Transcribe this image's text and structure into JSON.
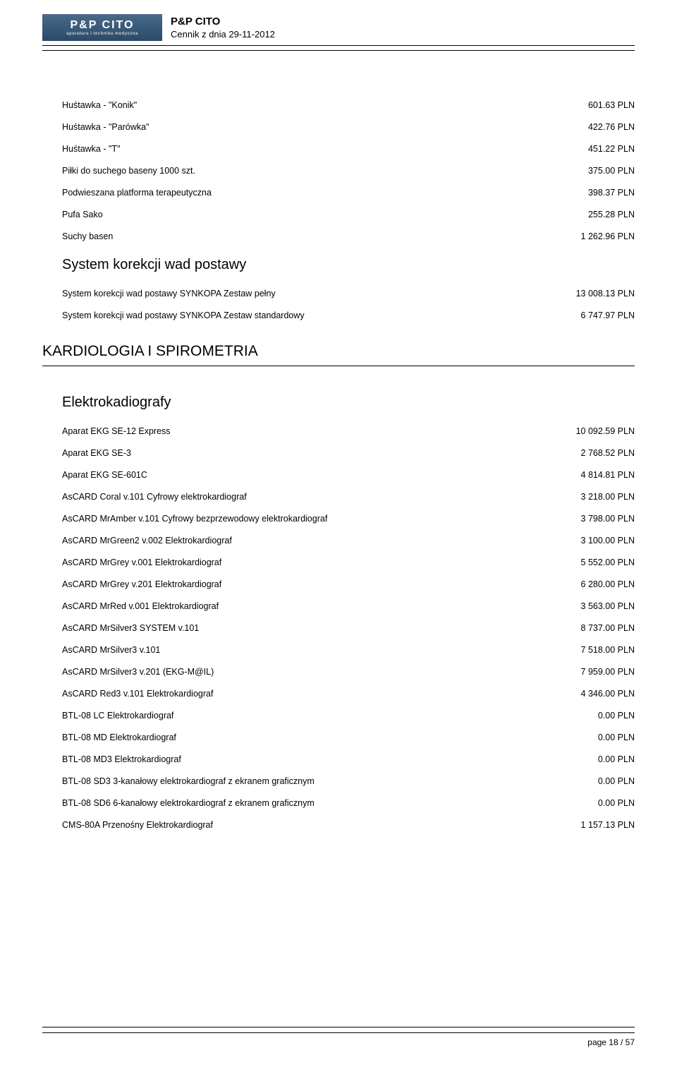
{
  "header": {
    "logo_main": "P&P CITO",
    "logo_sub": "aparatura i technika medyczna",
    "title": "P&P CITO",
    "subtitle": "Cennik z dnia 29-11-2012"
  },
  "section1_items": [
    {
      "label": "Huśtawka - \"Konik\"",
      "price": "601.63 PLN"
    },
    {
      "label": "Huśtawka - \"Parówka\"",
      "price": "422.76 PLN"
    },
    {
      "label": "Huśtawka - \"T\"",
      "price": "451.22 PLN"
    },
    {
      "label": "Piłki do suchego baseny 1000 szt.",
      "price": "375.00 PLN"
    },
    {
      "label": "Podwieszana platforma terapeutyczna",
      "price": "398.37 PLN"
    },
    {
      "label": "Pufa Sako",
      "price": "255.28 PLN"
    },
    {
      "label": "Suchy basen",
      "price": "1 262.96 PLN"
    }
  ],
  "section2_title": "System korekcji wad postawy",
  "section2_items": [
    {
      "label": "System korekcji wad postawy SYNKOPA Zestaw pełny",
      "price": "13 008.13 PLN"
    },
    {
      "label": "System korekcji wad postawy SYNKOPA Zestaw standardowy",
      "price": "6 747.97 PLN"
    }
  ],
  "section3_title": "KARDIOLOGIA I SPIROMETRIA",
  "section4_title": "Elektrokadiografy",
  "section4_items": [
    {
      "label": "Aparat EKG SE-12 Express",
      "price": "10 092.59 PLN"
    },
    {
      "label": "Aparat EKG SE-3",
      "price": "2 768.52 PLN"
    },
    {
      "label": "Aparat EKG SE-601C",
      "price": "4 814.81 PLN"
    },
    {
      "label": "AsCARD Coral v.101 Cyfrowy elektrokardiograf",
      "price": "3 218.00 PLN"
    },
    {
      "label": "AsCARD MrAmber v.101 Cyfrowy bezprzewodowy elektrokardiograf",
      "price": "3 798.00 PLN"
    },
    {
      "label": "AsCARD MrGreen2 v.002 Elektrokardiograf",
      "price": "3 100.00 PLN"
    },
    {
      "label": "AsCARD MrGrey v.001 Elektrokardiograf",
      "price": "5 552.00 PLN"
    },
    {
      "label": "AsCARD MrGrey v.201 Elektrokardiograf",
      "price": "6 280.00 PLN"
    },
    {
      "label": "AsCARD MrRed v.001 Elektrokardiograf",
      "price": "3 563.00 PLN"
    },
    {
      "label": "AsCARD MrSilver3 SYSTEM v.101",
      "price": "8 737.00 PLN"
    },
    {
      "label": "AsCARD MrSilver3 v.101",
      "price": "7 518.00 PLN"
    },
    {
      "label": "AsCARD MrSilver3 v.201 (EKG-M@IL)",
      "price": "7 959.00 PLN"
    },
    {
      "label": "AsCARD Red3 v.101 Elektrokardiograf",
      "price": "4 346.00 PLN"
    },
    {
      "label": "BTL-08 LC Elektrokardiograf",
      "price": "0.00 PLN"
    },
    {
      "label": "BTL-08 MD Elektrokardiograf",
      "price": "0.00 PLN"
    },
    {
      "label": "BTL-08 MD3 Elektrokardiograf",
      "price": "0.00 PLN"
    },
    {
      "label": "BTL-08 SD3 3-kanałowy elektrokardiograf z ekranem graficznym",
      "price": "0.00 PLN"
    },
    {
      "label": "BTL-08 SD6 6-kanałowy elektrokardiograf z ekranem graficznym",
      "price": "0.00 PLN"
    },
    {
      "label": "CMS-80A Przenośny Elektrokardiograf",
      "price": "1 157.13 PLN"
    }
  ],
  "footer": {
    "text": "page 18 / 57"
  }
}
